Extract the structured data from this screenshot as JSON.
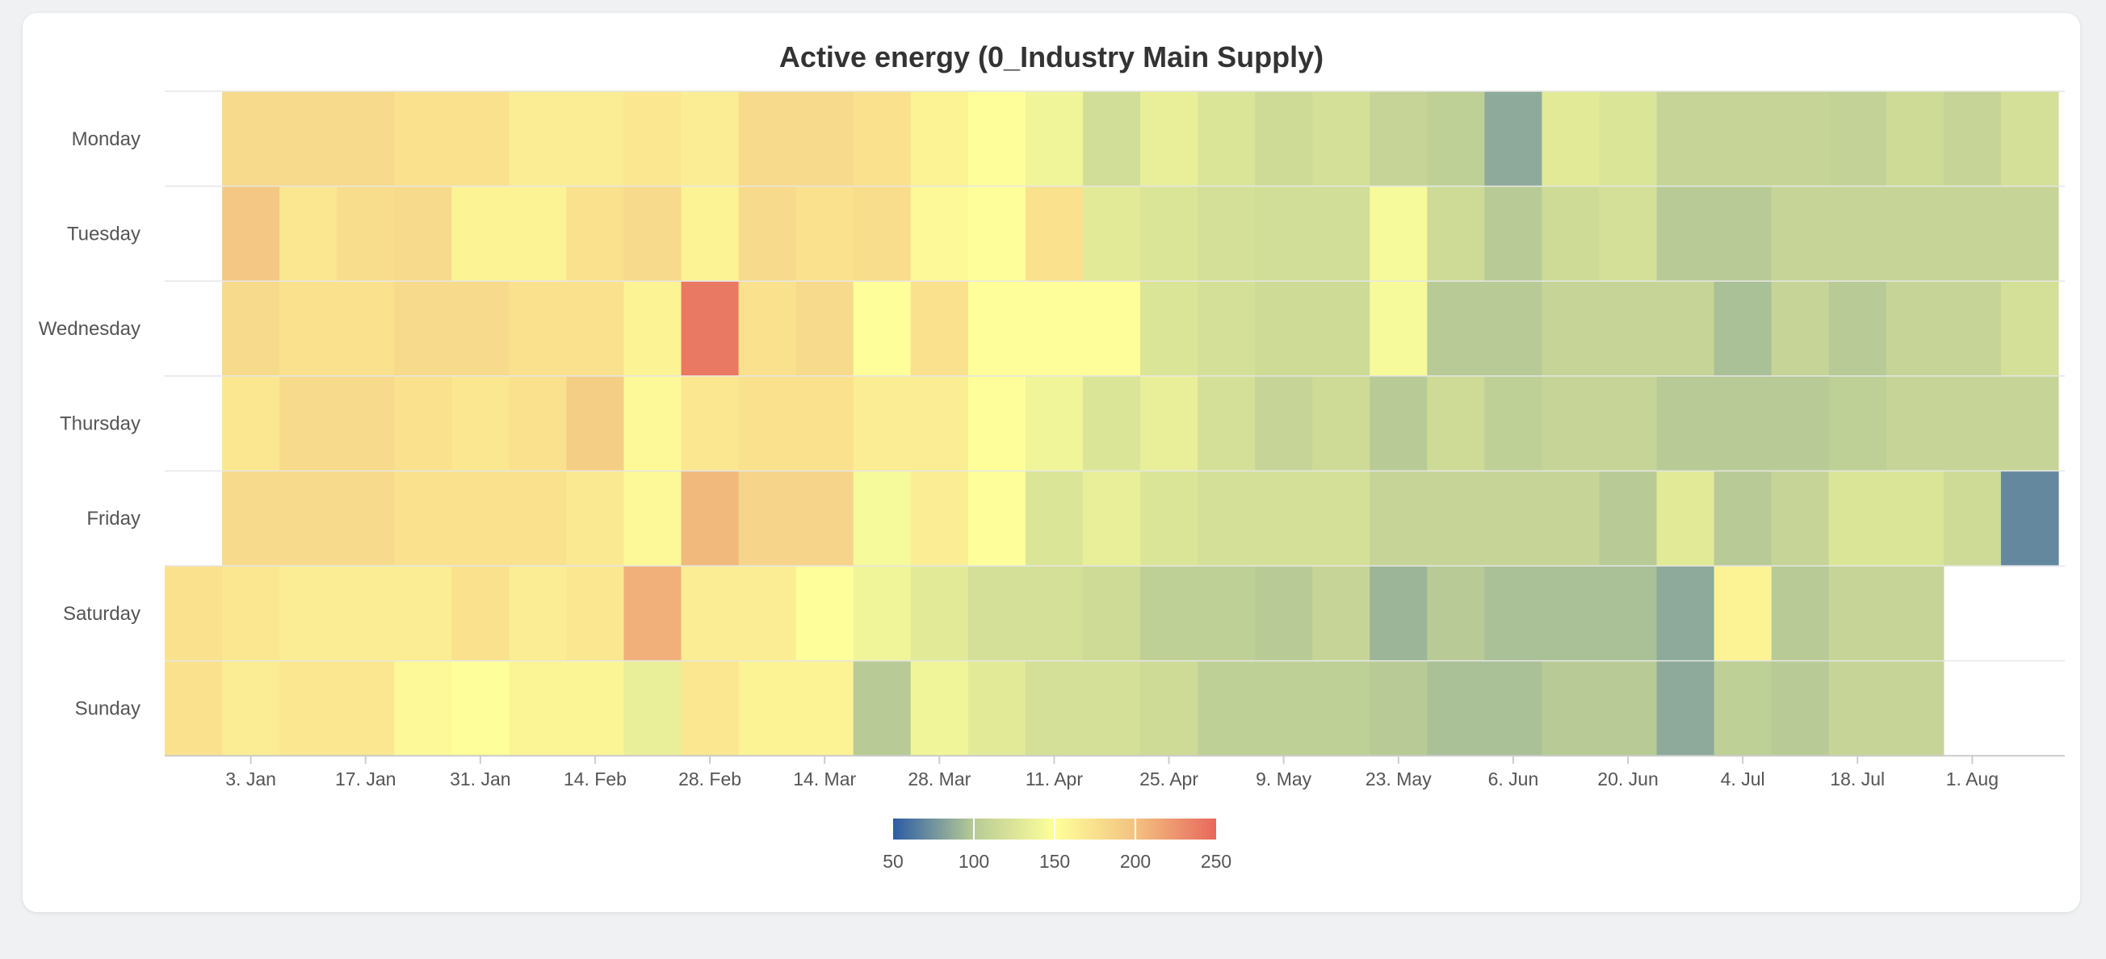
{
  "chart_data": {
    "type": "heatmap",
    "title": "Active energy (0_Industry Main Supply)",
    "y_categories": [
      "Monday",
      "Tuesday",
      "Wednesday",
      "Thursday",
      "Friday",
      "Saturday",
      "Sunday"
    ],
    "x_tick_labels": [
      "3. Jan",
      "17. Jan",
      "31. Jan",
      "14. Feb",
      "28. Feb",
      "14. Mar",
      "28. Mar",
      "11. Apr",
      "25. Apr",
      "9. May",
      "23. May",
      "6. Jun",
      "20. Jun",
      "4. Jul",
      "18. Jul",
      "1. Aug"
    ],
    "x_ticks_start_week": 1,
    "x_ticks_step_weeks": 2,
    "weeks": 33,
    "values": [
      [
        null,
        180,
        180,
        180,
        175,
        175,
        165,
        165,
        170,
        165,
        180,
        180,
        175,
        160,
        150,
        140,
        118,
        135,
        125,
        115,
        120,
        110,
        105,
        85,
        130,
        125,
        110,
        110,
        110,
        108,
        115,
        110,
        120
      ],
      [
        null,
        195,
        170,
        178,
        180,
        160,
        160,
        175,
        180,
        160,
        180,
        175,
        178,
        155,
        150,
        175,
        130,
        125,
        120,
        118,
        118,
        145,
        115,
        100,
        115,
        120,
        100,
        100,
        110,
        110,
        110,
        110,
        110
      ],
      [
        null,
        180,
        175,
        175,
        180,
        180,
        175,
        175,
        160,
        240,
        175,
        180,
        150,
        175,
        150,
        150,
        150,
        125,
        120,
        115,
        115,
        145,
        100,
        100,
        110,
        110,
        110,
        95,
        110,
        100,
        110,
        110,
        120
      ],
      [
        null,
        170,
        180,
        180,
        175,
        170,
        175,
        190,
        155,
        170,
        175,
        175,
        165,
        165,
        150,
        140,
        125,
        135,
        120,
        110,
        115,
        100,
        115,
        105,
        110,
        110,
        100,
        100,
        100,
        105,
        110,
        110,
        110
      ],
      [
        null,
        180,
        180,
        180,
        175,
        175,
        175,
        168,
        155,
        205,
        185,
        185,
        145,
        165,
        150,
        125,
        135,
        125,
        120,
        120,
        120,
        110,
        110,
        110,
        110,
        100,
        130,
        100,
        110,
        125,
        125,
        115,
        70
      ],
      [
        175,
        170,
        165,
        165,
        165,
        175,
        165,
        170,
        210,
        165,
        165,
        150,
        140,
        130,
        120,
        120,
        115,
        105,
        105,
        100,
        110,
        90,
        100,
        95,
        95,
        95,
        85,
        160,
        100,
        110,
        110,
        null,
        null
      ],
      [
        175,
        165,
        170,
        170,
        155,
        150,
        158,
        158,
        135,
        170,
        160,
        160,
        100,
        140,
        130,
        120,
        120,
        115,
        105,
        105,
        105,
        100,
        95,
        95,
        100,
        100,
        85,
        105,
        100,
        110,
        110,
        null,
        null
      ]
    ],
    "color_stops": [
      {
        "value": 50,
        "color": "#2c5ca3"
      },
      {
        "value": 100,
        "color": "#b8cb96"
      },
      {
        "value": 150,
        "color": "#feff9a"
      },
      {
        "value": 200,
        "color": "#f3c281"
      },
      {
        "value": 250,
        "color": "#e8675c"
      }
    ],
    "color_axis": {
      "min": 50,
      "max": 250,
      "tick_labels": [
        "50",
        "100",
        "150",
        "200",
        "250"
      ],
      "tick_values": [
        50,
        100,
        150,
        200,
        250
      ],
      "position": "bottom-center"
    },
    "grid": true
  }
}
